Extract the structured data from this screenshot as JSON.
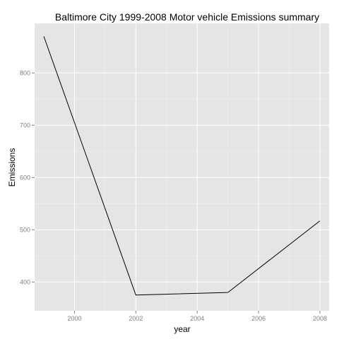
{
  "chart_data": {
    "type": "line",
    "title": "Baltimore City 1999-2008 Motor vehicle Emissions summary",
    "xlabel": "year",
    "ylabel": "Emissions",
    "x": [
      1999,
      2002,
      2005,
      2008
    ],
    "series": [
      {
        "values": [
          870,
          375,
          380,
          517
        ]
      }
    ],
    "xlim": [
      1998.7,
      2008.3
    ],
    "ylim": [
      345,
      895
    ],
    "x_ticks": [
      "2000",
      "2002",
      "2004",
      "2006",
      "2008"
    ],
    "y_ticks": [
      "400",
      "500",
      "600",
      "700",
      "800"
    ],
    "grid": true,
    "colors": {
      "panel_background": "#e5e5e5",
      "grid_major": "#ffffff",
      "grid_minor": "#f2f2f2",
      "line": "#000000",
      "tick_label": "#7f7f7f"
    }
  }
}
